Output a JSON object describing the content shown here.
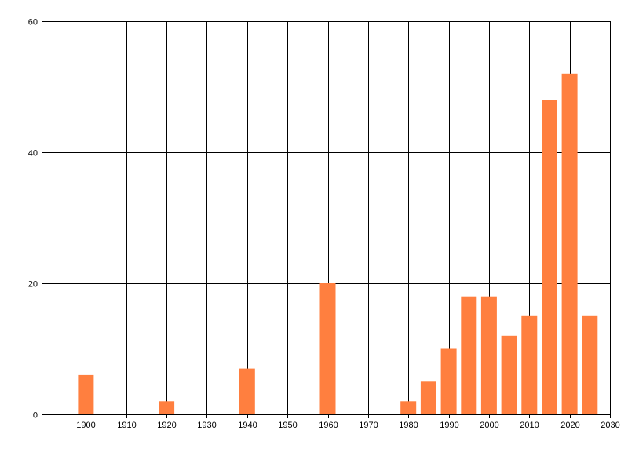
{
  "chart_data": {
    "type": "bar",
    "x": [
      1900,
      1920,
      1940,
      1960,
      1980,
      1985,
      1990,
      1995,
      2000,
      2005,
      2010,
      2015,
      2020,
      2025
    ],
    "values": [
      6,
      2,
      7,
      20,
      2,
      5,
      10,
      18,
      18,
      12,
      15,
      48,
      52,
      15
    ],
    "xlim": [
      1890,
      2030
    ],
    "ylim": [
      0,
      60
    ],
    "x_ticks": [
      1900,
      1910,
      1920,
      1930,
      1940,
      1950,
      1960,
      1970,
      1980,
      1990,
      2000,
      2010,
      2020,
      2030
    ],
    "y_ticks": [
      0,
      20,
      40,
      60
    ],
    "grid": true,
    "bar_color": "#ff7f3f",
    "title": "",
    "xlabel": "",
    "ylabel": ""
  }
}
